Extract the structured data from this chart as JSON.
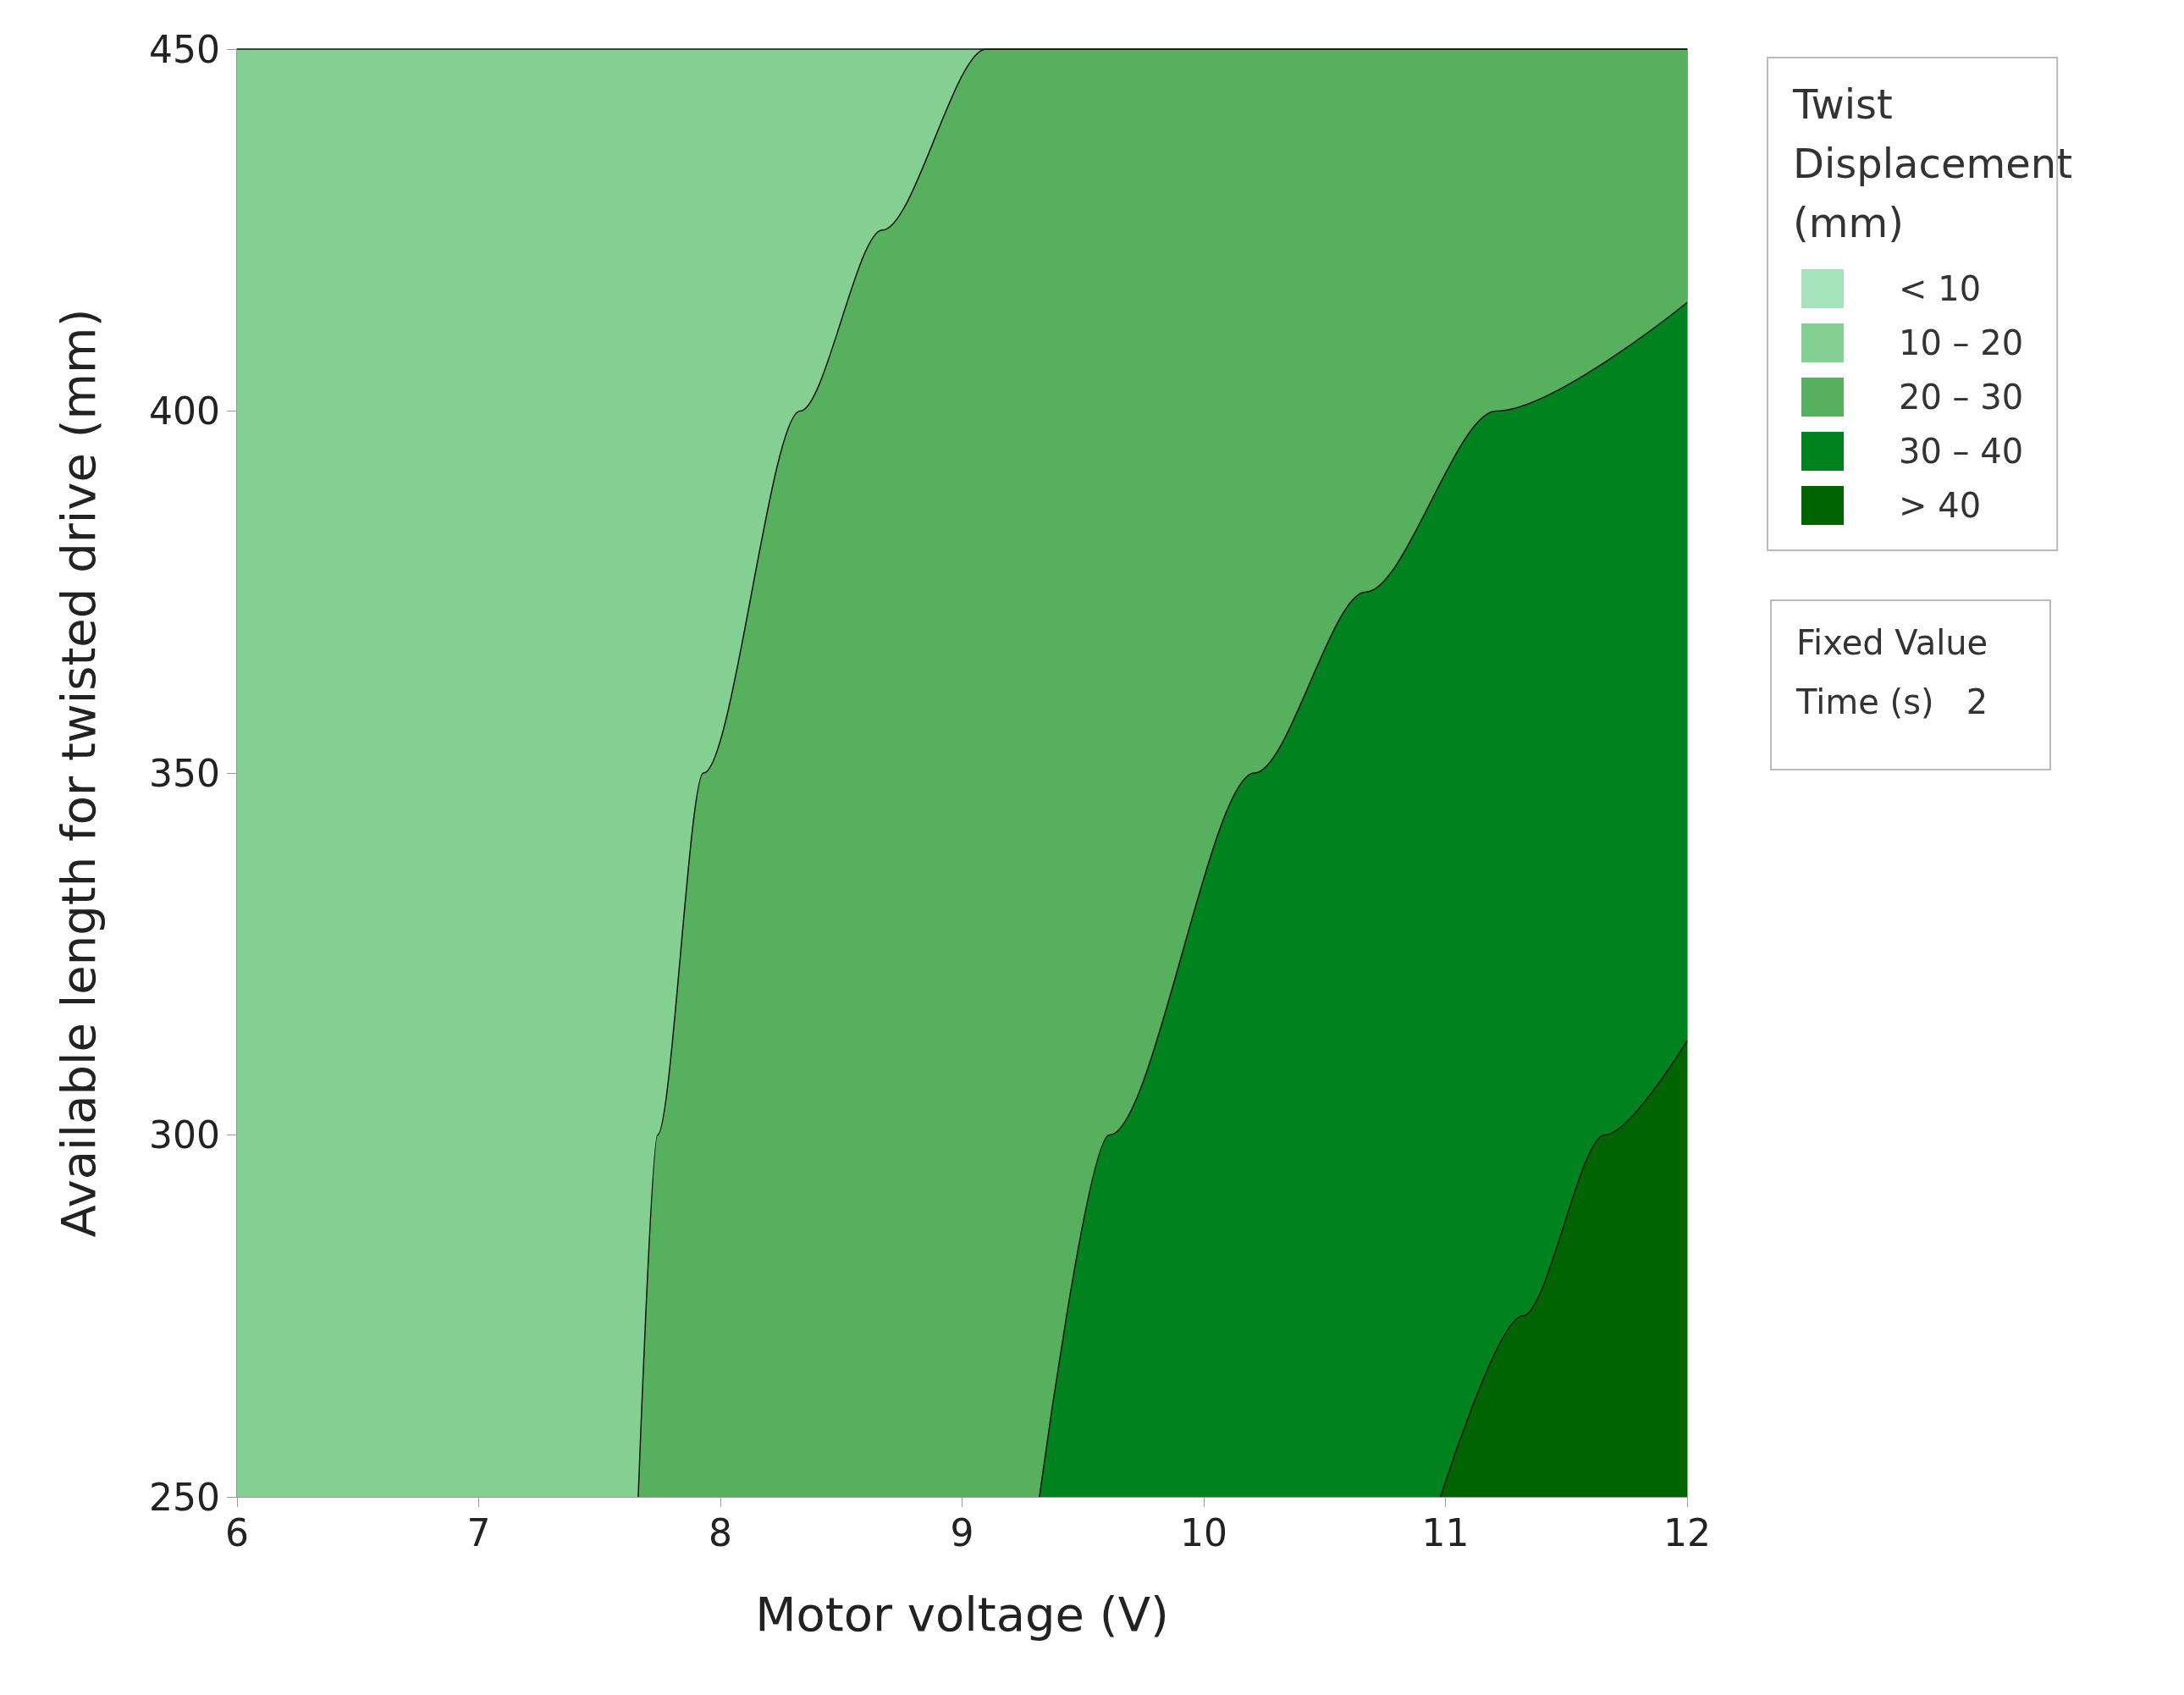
{
  "chart_data": {
    "type": "area",
    "xlabel": "Motor voltage (V)",
    "ylabel": "Available length for twisted drive (mm)",
    "legend_title": "Twist Displacement (mm)",
    "legend": "right",
    "grid": false,
    "marker": "none",
    "xlim": [
      6,
      12
    ],
    "xticks": [
      6,
      7,
      8,
      9,
      10,
      11,
      12
    ],
    "ylim": [
      250,
      450
    ],
    "yticks": [
      250,
      300,
      350,
      400,
      450
    ],
    "series": [
      {
        "name": "< 10",
        "color": "#a6e3bd"
      },
      {
        "name": "10 – 20",
        "color": "#84cf92",
        "x": [
          6,
          12
        ],
        "values": [
          450,
          450
        ]
      },
      {
        "name": "20 – 30",
        "color": "#56b05e",
        "x": [
          7.66,
          7.74,
          7.93,
          8.33,
          8.67,
          9.1,
          12
        ],
        "values": [
          250,
          300,
          350,
          400,
          425,
          450,
          450
        ]
      },
      {
        "name": "30 – 40",
        "color": "#00821e",
        "x": [
          9.32,
          9.61,
          10.21,
          10.67,
          11.21,
          12
        ],
        "values": [
          250,
          300,
          350,
          375,
          400,
          415
        ]
      },
      {
        "name": "> 40",
        "color": "#006400",
        "x": [
          10.98,
          11.32,
          11.66,
          12
        ],
        "values": [
          250,
          275,
          300,
          313
        ]
      }
    ],
    "annotations": [
      "Fixed Value",
      "Time (s)   2"
    ]
  }
}
